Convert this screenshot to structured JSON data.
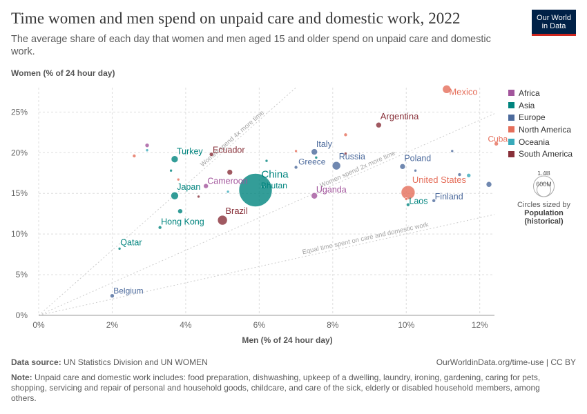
{
  "header": {
    "title": "Time women and men spend on unpaid care and domestic work, 2022",
    "subtitle": "The average share of each day that women and men aged 15 and older spend on unpaid care and domestic work.",
    "logo_line1": "Our World",
    "logo_line2": "in Data"
  },
  "footer": {
    "source_label": "Data source:",
    "source_text": "UN Statistics Division and UN WOMEN",
    "url": "OurWorldinData.org/time-use | CC BY",
    "note_label": "Note:",
    "note_text": "Unpaid care and domestic work includes: food preparation, dishwashing, upkeep of a dwelling, laundry, ironing, gardening, caring for pets, shopping, servicing and repair of personal and household goods, childcare, and care of the sick, elderly or disabled household members, among others."
  },
  "legend": {
    "items": [
      {
        "name": "Africa",
        "color": "#a2559c"
      },
      {
        "name": "Asia",
        "color": "#00847e"
      },
      {
        "name": "Europe",
        "color": "#4c6a9c"
      },
      {
        "name": "North America",
        "color": "#e56e5a"
      },
      {
        "name": "Oceania",
        "color": "#38aaba"
      },
      {
        "name": "South America",
        "color": "#883039"
      }
    ],
    "size_big": "1.4B",
    "size_small": "600M",
    "size_caption": "Circles sized by",
    "size_variable": "Population (historical)"
  },
  "chart_data": {
    "type": "scatter",
    "title": "Time women and men spend on unpaid care and domestic work, 2022",
    "xlabel": "Men (% of 24 hour day)",
    "ylabel": "Women (% of 24 hour day)",
    "xlim": [
      0,
      12.4
    ],
    "ylim": [
      0,
      28
    ],
    "x_ticks": [
      0,
      2,
      4,
      6,
      8,
      10,
      12
    ],
    "y_ticks": [
      0,
      5,
      10,
      15,
      20,
      25
    ],
    "x_tick_labels": [
      "0%",
      "2%",
      "4%",
      "6%",
      "8%",
      "10%",
      "12%"
    ],
    "y_tick_labels": [
      "0%",
      "5%",
      "10%",
      "15%",
      "20%",
      "25%"
    ],
    "reference_lines": [
      {
        "label": "Equal time spent on care and domestic work",
        "ratio": 1
      },
      {
        "label": "Women spend 2x more time",
        "ratio": 2
      },
      {
        "label": "Women spend 4x more time",
        "ratio": 4
      }
    ],
    "points": [
      {
        "x": 11.1,
        "y": 27.8,
        "label": "Mexico",
        "region": "North America",
        "size": 6
      },
      {
        "x": 9.25,
        "y": 23.4,
        "label": "Argentina",
        "region": "South America",
        "size": 4
      },
      {
        "x": 12.45,
        "y": 21.1,
        "label": "Cuba",
        "region": "North America",
        "size": 3
      },
      {
        "x": 7.5,
        "y": 20.1,
        "label": "Italy",
        "region": "Europe",
        "size": 4.5
      },
      {
        "x": 8.1,
        "y": 18.4,
        "label": "Russia",
        "region": "Europe",
        "size": 6
      },
      {
        "x": 7.0,
        "y": 18.2,
        "label": "Greece",
        "region": "Europe",
        "size": 2.5
      },
      {
        "x": 3.7,
        "y": 19.2,
        "label": "Turkey",
        "region": "Asia",
        "size": 5
      },
      {
        "x": 4.7,
        "y": 19.8,
        "label": "Ecuador",
        "region": "South America",
        "size": 3
      },
      {
        "x": 5.9,
        "y": 15.4,
        "label": "China",
        "region": "Asia",
        "size": 24
      },
      {
        "x": 6.1,
        "y": 15.8,
        "label": "Bhutan",
        "region": "Asia",
        "size": 2
      },
      {
        "x": 4.55,
        "y": 15.9,
        "label": "Cameroon",
        "region": "Africa",
        "size": 3.5
      },
      {
        "x": 3.7,
        "y": 14.7,
        "label": "Japan",
        "region": "Asia",
        "size": 5.5
      },
      {
        "x": 7.5,
        "y": 14.7,
        "label": "Uganda",
        "region": "Africa",
        "size": 4.5
      },
      {
        "x": 9.9,
        "y": 18.3,
        "label": "Poland",
        "region": "Europe",
        "size": 4
      },
      {
        "x": 10.05,
        "y": 15.1,
        "label": "United States",
        "region": "North America",
        "size": 10
      },
      {
        "x": 10.05,
        "y": 13.6,
        "label": "Laos",
        "region": "Asia",
        "size": 2.5
      },
      {
        "x": 10.75,
        "y": 14.1,
        "label": "Finland",
        "region": "Europe",
        "size": 2.5
      },
      {
        "x": 5.0,
        "y": 11.7,
        "label": "Brazil",
        "region": "South America",
        "size": 7
      },
      {
        "x": 3.3,
        "y": 10.8,
        "label": "Hong Kong",
        "region": "Asia",
        "size": 2.5
      },
      {
        "x": 2.2,
        "y": 8.2,
        "label": "Qatar",
        "region": "Asia",
        "size": 2
      },
      {
        "x": 2.0,
        "y": 2.4,
        "label": "Belgium",
        "region": "Europe",
        "size": 3
      },
      {
        "x": 2.95,
        "y": 20.9,
        "label": "",
        "region": "Africa",
        "size": 3
      },
      {
        "x": 2.95,
        "y": 20.3,
        "label": "",
        "region": "Oceania",
        "size": 2
      },
      {
        "x": 2.6,
        "y": 19.6,
        "label": "",
        "region": "North America",
        "size": 2.5
      },
      {
        "x": 3.6,
        "y": 17.8,
        "label": "",
        "region": "Asia",
        "size": 2
      },
      {
        "x": 3.8,
        "y": 16.7,
        "label": "",
        "region": "North America",
        "size": 2
      },
      {
        "x": 3.85,
        "y": 12.8,
        "label": "",
        "region": "Asia",
        "size": 3.5
      },
      {
        "x": 4.35,
        "y": 14.6,
        "label": "",
        "region": "South America",
        "size": 2
      },
      {
        "x": 5.2,
        "y": 17.6,
        "label": "",
        "region": "South America",
        "size": 4
      },
      {
        "x": 5.15,
        "y": 15.2,
        "label": "",
        "region": "Oceania",
        "size": 2
      },
      {
        "x": 6.2,
        "y": 19.0,
        "label": "",
        "region": "Asia",
        "size": 2
      },
      {
        "x": 7.0,
        "y": 20.2,
        "label": "",
        "region": "North America",
        "size": 2
      },
      {
        "x": 7.55,
        "y": 19.4,
        "label": "",
        "region": "Asia",
        "size": 2
      },
      {
        "x": 8.35,
        "y": 22.2,
        "label": "",
        "region": "North America",
        "size": 2.5
      },
      {
        "x": 8.35,
        "y": 19.9,
        "label": "",
        "region": "South America",
        "size": 2
      },
      {
        "x": 10.25,
        "y": 17.8,
        "label": "",
        "region": "Europe",
        "size": 2
      },
      {
        "x": 10.0,
        "y": 14.3,
        "label": "",
        "region": "North America",
        "size": 2
      },
      {
        "x": 11.25,
        "y": 20.2,
        "label": "",
        "region": "Europe",
        "size": 2
      },
      {
        "x": 11.45,
        "y": 17.3,
        "label": "",
        "region": "Europe",
        "size": 2.5
      },
      {
        "x": 11.7,
        "y": 17.2,
        "label": "",
        "region": "Oceania",
        "size": 3
      },
      {
        "x": 12.25,
        "y": 16.1,
        "label": "",
        "region": "Europe",
        "size": 4
      }
    ]
  }
}
